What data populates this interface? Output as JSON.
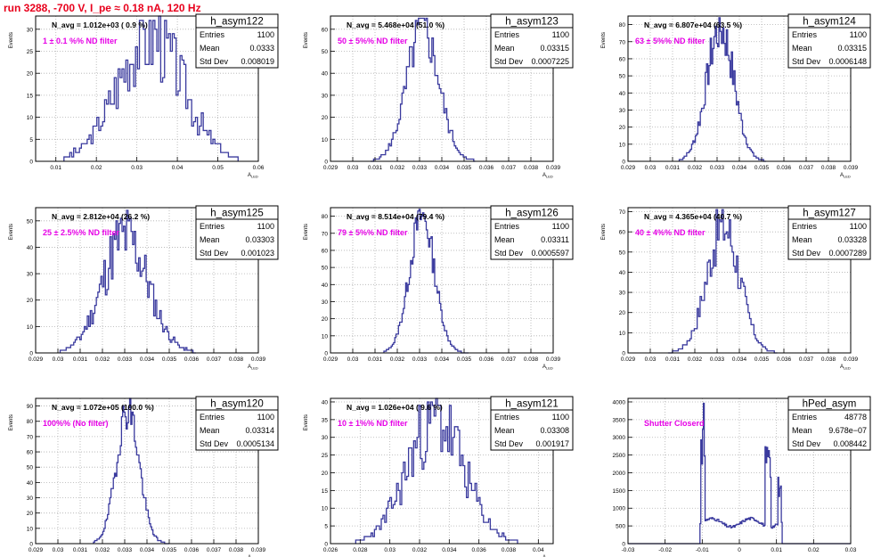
{
  "run_title": "run 3288,  -700 V, I_pe ≈ 0.18 nA, 120 Hz",
  "colors": {
    "hist": "#3a3a9e",
    "annotation": "#e600e6",
    "frame": "#000000",
    "grid": "#b0b0b0",
    "title": "#e8001c"
  },
  "stats_labels": {
    "entries": "Entries",
    "mean": "Mean",
    "std": "Std Dev"
  },
  "chart_data": [
    {
      "type": "histogram",
      "name": "h_asym122",
      "ylabel": "Events",
      "xlabel": "A_LED",
      "xlim": [
        0.005,
        0.06
      ],
      "ylim": [
        0,
        33
      ],
      "xticks": [
        "0.01",
        "0.02",
        "0.03",
        "0.04",
        "0.05",
        "0.06"
      ],
      "xtick_values": [
        0.01,
        0.02,
        0.03,
        0.04,
        0.05,
        0.06
      ],
      "yticks": [
        0,
        5,
        10,
        15,
        20,
        25,
        30
      ],
      "navg": "N_avg = 1.012e+03 ( 0.9 %)",
      "filter": "1 ± 0.1 %% ND filter",
      "entries": "1100",
      "mean": "0.0333",
      "std": "0.008019",
      "dist": {
        "mu": 0.0333,
        "sigma": 0.008,
        "xmin": 0.012,
        "xmax": 0.055,
        "peak": 29,
        "bins": 90,
        "noise": 0.35,
        "seed": 3
      }
    },
    {
      "type": "histogram",
      "name": "h_asym123",
      "ylabel": "Events",
      "xlabel": "A_LED",
      "xlim": [
        0.029,
        0.039
      ],
      "ylim": [
        0,
        66
      ],
      "xticks": [
        "0.029",
        "0.03",
        "0.031",
        "0.032",
        "0.033",
        "0.034",
        "0.035",
        "0.036",
        "0.037",
        "0.038",
        "0.039"
      ],
      "xtick_values": [
        0.029,
        0.03,
        0.031,
        0.032,
        0.033,
        0.034,
        0.035,
        0.036,
        0.037,
        0.038,
        0.039
      ],
      "yticks": [
        0,
        10,
        20,
        30,
        40,
        50,
        60
      ],
      "navg": "N_avg = 5.468e+04 (51.0 %)",
      "filter": "50 ± 5%% ND filter",
      "entries": "1100",
      "mean": "0.03315",
      "std": "0.0007225",
      "dist": {
        "mu": 0.03315,
        "sigma": 0.00072,
        "xmin": 0.0308,
        "xmax": 0.0355,
        "peak": 60,
        "bins": 70,
        "noise": 0.2,
        "seed": 5
      }
    },
    {
      "type": "histogram",
      "name": "h_asym124",
      "ylabel": "Events",
      "xlabel": "A_LED",
      "xlim": [
        0.029,
        0.039
      ],
      "ylim": [
        0,
        85
      ],
      "xticks": [
        "0.029",
        "0.03",
        "0.031",
        "0.032",
        "0.033",
        "0.034",
        "0.035",
        "0.036",
        "0.037",
        "0.038",
        "0.039"
      ],
      "xtick_values": [
        0.029,
        0.03,
        0.031,
        0.032,
        0.033,
        0.034,
        0.035,
        0.036,
        0.037,
        0.038,
        0.039
      ],
      "yticks": [
        0,
        10,
        20,
        30,
        40,
        50,
        60,
        70,
        80
      ],
      "navg": "N_avg = 6.807e+04 (63.5 %)",
      "filter": "63 ± 5%% ND filter",
      "entries": "1100",
      "mean": "0.03315",
      "std": "0.0006148",
      "dist": {
        "mu": 0.03315,
        "sigma": 0.00061,
        "xmin": 0.0313,
        "xmax": 0.0352,
        "peak": 78,
        "bins": 70,
        "noise": 0.2,
        "seed": 7
      }
    },
    {
      "type": "histogram",
      "name": "h_asym125",
      "ylabel": "Events",
      "xlabel": "A_LED",
      "xlim": [
        0.029,
        0.039
      ],
      "ylim": [
        0,
        55
      ],
      "xticks": [
        "0.029",
        "0.03",
        "0.031",
        "0.032",
        "0.033",
        "0.034",
        "0.035",
        "0.036",
        "0.037",
        "0.038",
        "0.039"
      ],
      "xtick_values": [
        0.029,
        0.03,
        0.031,
        0.032,
        0.033,
        0.034,
        0.035,
        0.036,
        0.037,
        0.038,
        0.039
      ],
      "yticks": [
        0,
        10,
        20,
        30,
        40,
        50
      ],
      "navg": "N_avg = 2.812e+04 (26.2 %)",
      "filter": "25 ± 2.5%% ND filter",
      "entries": "1100",
      "mean": "0.03303",
      "std": "0.001023",
      "dist": {
        "mu": 0.03303,
        "sigma": 0.00102,
        "xmin": 0.0301,
        "xmax": 0.0362,
        "peak": 44,
        "bins": 90,
        "noise": 0.3,
        "seed": 11
      }
    },
    {
      "type": "histogram",
      "name": "h_asym126",
      "ylabel": "Events",
      "xlabel": "A_LED",
      "xlim": [
        0.029,
        0.039
      ],
      "ylim": [
        0,
        85
      ],
      "xticks": [
        "0.029",
        "0.03",
        "0.031",
        "0.032",
        "0.033",
        "0.034",
        "0.035",
        "0.036",
        "0.037",
        "0.038",
        "0.039"
      ],
      "xtick_values": [
        0.029,
        0.03,
        0.031,
        0.032,
        0.033,
        0.034,
        0.035,
        0.036,
        0.037,
        0.038,
        0.039
      ],
      "yticks": [
        0,
        10,
        20,
        30,
        40,
        50,
        60,
        70,
        80
      ],
      "navg": "N_avg = 8.514e+04 (79.4 %)",
      "filter": "79 ± 5%% ND filter",
      "entries": "1100",
      "mean": "0.03311",
      "std": "0.0005597",
      "dist": {
        "mu": 0.03311,
        "sigma": 0.00056,
        "xmin": 0.0314,
        "xmax": 0.0352,
        "peak": 80,
        "bins": 70,
        "noise": 0.15,
        "seed": 13
      }
    },
    {
      "type": "histogram",
      "name": "h_asym127",
      "ylabel": "Events",
      "xlabel": "A_LED",
      "xlim": [
        0.029,
        0.039
      ],
      "ylim": [
        0,
        72
      ],
      "xticks": [
        "0.029",
        "0.03",
        "0.031",
        "0.032",
        "0.033",
        "0.034",
        "0.035",
        "0.036",
        "0.037",
        "0.038",
        "0.039"
      ],
      "xtick_values": [
        0.029,
        0.03,
        0.031,
        0.032,
        0.033,
        0.034,
        0.035,
        0.036,
        0.037,
        0.038,
        0.039
      ],
      "yticks": [
        0,
        10,
        20,
        30,
        40,
        50,
        60,
        70
      ],
      "navg": "N_avg = 4.365e+04 (40.7 %)",
      "filter": "40 ± 4%% ND filter",
      "entries": "1100",
      "mean": "0.03328",
      "std": "0.0007289",
      "dist": {
        "mu": 0.03328,
        "sigma": 0.00073,
        "xmin": 0.0308,
        "xmax": 0.0357,
        "peak": 63,
        "bins": 75,
        "noise": 0.25,
        "seed": 17
      }
    },
    {
      "type": "histogram",
      "name": "h_asym120",
      "ylabel": "Events",
      "xlabel": "A_LED",
      "xlim": [
        0.029,
        0.039
      ],
      "ylim": [
        0,
        95
      ],
      "xticks": [
        "0.029",
        "0.03",
        "0.031",
        "0.032",
        "0.033",
        "0.034",
        "0.035",
        "0.036",
        "0.037",
        "0.038",
        "0.039"
      ],
      "xtick_values": [
        0.029,
        0.03,
        0.031,
        0.032,
        0.033,
        0.034,
        0.035,
        0.036,
        0.037,
        0.038,
        0.039
      ],
      "yticks": [
        0,
        10,
        20,
        30,
        40,
        50,
        60,
        70,
        80,
        90
      ],
      "navg": "N_avg = 1.072e+05 (100.0 %)",
      "filter": "100%% (No filter)",
      "entries": "1100",
      "mean": "0.03314",
      "std": "0.0005134",
      "dist": {
        "mu": 0.03314,
        "sigma": 0.00051,
        "xmin": 0.0316,
        "xmax": 0.035,
        "peak": 88,
        "bins": 65,
        "noise": 0.15,
        "seed": 19
      }
    },
    {
      "type": "histogram",
      "name": "h_asym121",
      "ylabel": "Events",
      "xlabel": "A_LED",
      "xlim": [
        0.026,
        0.041
      ],
      "ylim": [
        0,
        41
      ],
      "xticks": [
        "0.026",
        "0.028",
        "0.03",
        "0.032",
        "0.034",
        "0.036",
        "0.038",
        "0.04"
      ],
      "xtick_values": [
        0.026,
        0.028,
        0.03,
        0.032,
        0.034,
        0.036,
        0.038,
        0.04
      ],
      "yticks": [
        0,
        5,
        10,
        15,
        20,
        25,
        30,
        35,
        40
      ],
      "navg": "N_avg = 1.026e+04 ( 9.6 %)",
      "filter": "10 ± 1%% ND filter",
      "entries": "1100",
      "mean": "0.03308",
      "std": "0.001917",
      "dist": {
        "mu": 0.03308,
        "sigma": 0.0019,
        "xmin": 0.0277,
        "xmax": 0.0386,
        "peak": 35,
        "bins": 95,
        "noise": 0.35,
        "seed": 23
      }
    },
    {
      "type": "histogram",
      "name": "hPed_asym",
      "ylabel": "",
      "xlabel": "",
      "xlim": [
        -0.03,
        0.03
      ],
      "ylim": [
        0,
        4100
      ],
      "xticks": [
        "-0.03",
        "-0.02",
        "-0.01",
        "0",
        "0.01",
        "0.02",
        "0.03"
      ],
      "xtick_values": [
        -0.03,
        -0.02,
        -0.01,
        0,
        0.01,
        0.02,
        0.03
      ],
      "yticks": [
        0,
        500,
        1000,
        1500,
        2000,
        2500,
        3000,
        3500,
        4000
      ],
      "navg": "",
      "filter": "Shutter Closerd",
      "entries": "48778",
      "mean": "9.678e−07",
      "std": "0.008442",
      "ped": true
    }
  ]
}
